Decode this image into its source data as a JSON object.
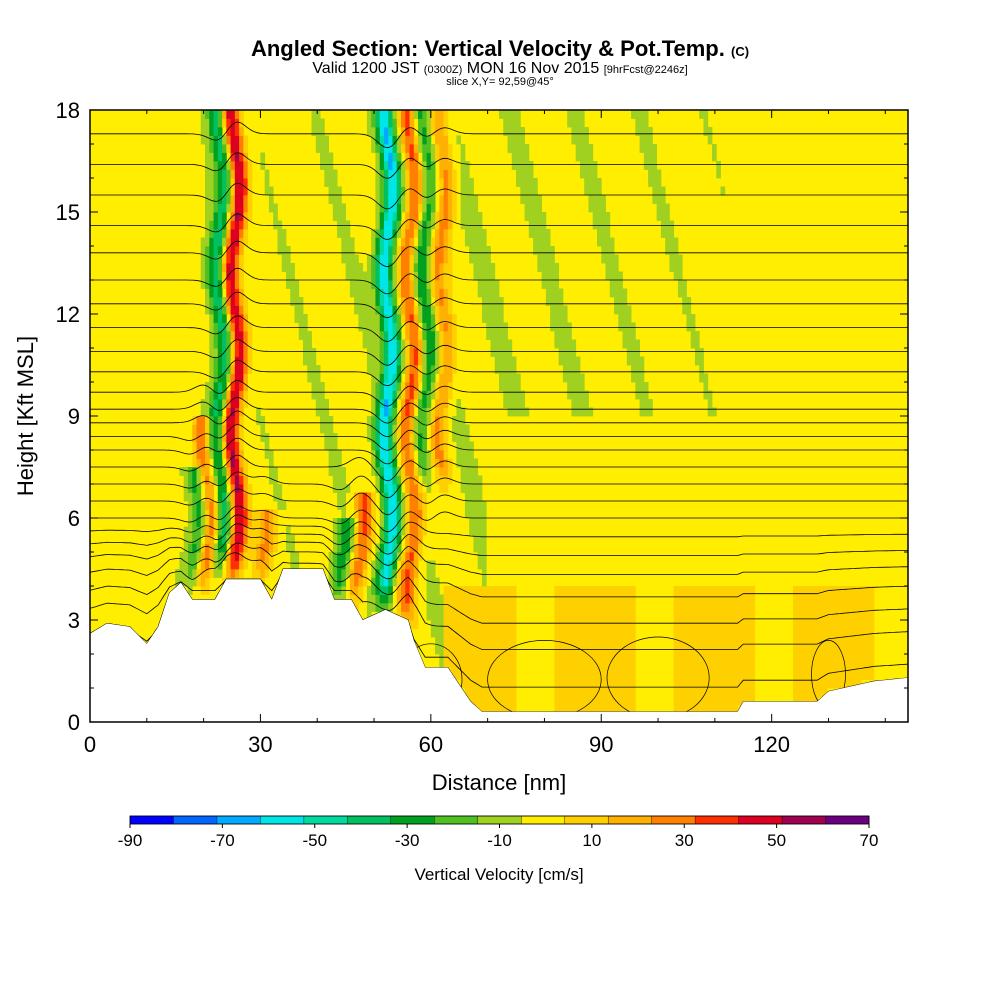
{
  "title": {
    "main": "Angled Section: Vertical Velocity & Pot.Temp.",
    "main_suffix": "(C)",
    "sub_prefix": "Valid 1200 JST",
    "sub_small1": "(0300Z)",
    "sub_mid": "MON 16 Nov 2015",
    "sub_small2": "[9hrFcst@2246z]",
    "slice": "slice X,Y= 92,59@45°"
  },
  "chart_data": {
    "type": "heatmap",
    "xlabel": "Distance [nm]",
    "ylabel": "Height [Kft MSL]",
    "xlim": [
      0,
      144
    ],
    "ylim": [
      0,
      18
    ],
    "x_ticks": [
      "0",
      "30",
      "60",
      "90",
      "120"
    ],
    "x_tick_values": [
      0,
      30,
      60,
      90,
      120
    ],
    "y_ticks": [
      "0",
      "3",
      "6",
      "9",
      "12",
      "15",
      "18"
    ],
    "y_tick_values": [
      0,
      3,
      6,
      9,
      12,
      15,
      18
    ],
    "colorbar": {
      "title": "Vertical Velocity [cm/s]",
      "labels": [
        "-90",
        "-70",
        "-50",
        "-30",
        "-10",
        "10",
        "30",
        "50",
        "70"
      ],
      "levels": [
        -90,
        -80,
        -70,
        -60,
        -50,
        -40,
        -30,
        -20,
        -10,
        0,
        10,
        20,
        30,
        40,
        50,
        60,
        70
      ],
      "colors": [
        "#0000ff",
        "#0066ff",
        "#00aaff",
        "#00e5e5",
        "#00d9a0",
        "#00c060",
        "#00a020",
        "#50c020",
        "#a0d020",
        "#ffee00",
        "#ffd000",
        "#ffb000",
        "#ff8000",
        "#ff3000",
        "#dd0020",
        "#a00050",
        "#6a0080"
      ]
    },
    "terrain_kft": [
      [
        0,
        2.6
      ],
      [
        3,
        2.9
      ],
      [
        7,
        2.8
      ],
      [
        10,
        2.3
      ],
      [
        12,
        2.8
      ],
      [
        14,
        3.8
      ],
      [
        16,
        4.1
      ],
      [
        18,
        3.6
      ],
      [
        22,
        3.6
      ],
      [
        24,
        4.2
      ],
      [
        30,
        4.2
      ],
      [
        32,
        3.6
      ],
      [
        34,
        4.5
      ],
      [
        41,
        4.5
      ],
      [
        43,
        3.6
      ],
      [
        46,
        3.6
      ],
      [
        48,
        3.0
      ],
      [
        52,
        3.3
      ],
      [
        56,
        3.0
      ],
      [
        57,
        2.4
      ],
      [
        59,
        1.6
      ],
      [
        63,
        1.6
      ],
      [
        65,
        1.1
      ],
      [
        67,
        0.6
      ],
      [
        69,
        0.3
      ],
      [
        114,
        0.3
      ],
      [
        115,
        0.6
      ],
      [
        128,
        0.6
      ],
      [
        130,
        0.9
      ],
      [
        138,
        1.2
      ],
      [
        144,
        1.3
      ]
    ],
    "updraft_plumes": [
      {
        "x": 25.5,
        "top": 18,
        "bottom": 4.2,
        "strength": 60
      },
      {
        "x": 20.5,
        "top": 9,
        "bottom": 4.0,
        "strength": 40
      },
      {
        "x": 30.5,
        "top": 6.3,
        "bottom": 4.2,
        "strength": 30
      },
      {
        "x": 47.5,
        "top": 6.8,
        "bottom": 3.6,
        "strength": 40
      },
      {
        "x": 56.5,
        "top": 18,
        "bottom": 3.0,
        "strength": 40
      },
      {
        "x": 62.0,
        "top": 18,
        "bottom": 7.0,
        "strength": 30
      }
    ],
    "downdraft_plumes": [
      {
        "x": 23.0,
        "top": 18,
        "bottom": 4.5,
        "strength": -40
      },
      {
        "x": 18.5,
        "top": 7.5,
        "bottom": 4.0,
        "strength": -30
      },
      {
        "x": 52.5,
        "top": 18,
        "bottom": 3.5,
        "strength": -60
      },
      {
        "x": 44.5,
        "top": 6.0,
        "bottom": 3.6,
        "strength": -30
      },
      {
        "x": 59.0,
        "top": 18,
        "bottom": 7.0,
        "strength": -30
      }
    ],
    "isentrope_heights_kft": [
      0.5,
      1.5,
      2.5,
      3.2,
      3.9,
      4.5,
      5.0,
      5.5,
      6.0,
      6.5,
      7.0,
      7.5,
      8.0,
      8.4,
      8.8,
      9.2,
      9.7,
      10.3,
      10.9,
      11.6,
      12.3,
      13.0,
      13.8,
      14.6,
      15.5,
      16.4,
      17.3
    ]
  }
}
